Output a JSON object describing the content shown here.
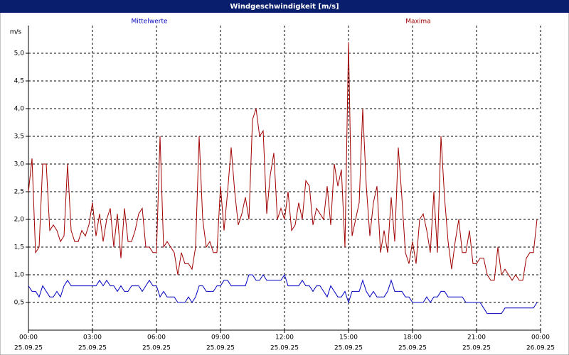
{
  "chart_data": {
    "type": "line",
    "title": "Windgeschwindigkeit [m/s]",
    "ylabel": "m/s",
    "xlim": [
      0,
      1440
    ],
    "ylim": [
      0,
      5.5
    ],
    "grid": true,
    "xticks": [
      {
        "value": 0,
        "label": "00:00"
      },
      {
        "value": 180,
        "label": "03:00"
      },
      {
        "value": 360,
        "label": "06:00"
      },
      {
        "value": 540,
        "label": "09:00"
      },
      {
        "value": 720,
        "label": "12:00"
      },
      {
        "value": 900,
        "label": "15:00"
      },
      {
        "value": 1080,
        "label": "18:00"
      },
      {
        "value": 1260,
        "label": "21:00"
      },
      {
        "value": 1440,
        "label": "00:00"
      }
    ],
    "xtick_dates": [
      "25.09.25",
      "25.09.25",
      "25.09.25",
      "25.09.25",
      "25.09.25",
      "25.09.25",
      "25.09.25",
      "25.09.25",
      "26.09.25"
    ],
    "yticks": [
      {
        "value": 0.5,
        "label": "0,5"
      },
      {
        "value": 1.0,
        "label": "1,0"
      },
      {
        "value": 1.5,
        "label": "1,5"
      },
      {
        "value": 2.0,
        "label": "2,0"
      },
      {
        "value": 2.5,
        "label": "2,5"
      },
      {
        "value": 3.0,
        "label": "3,0"
      },
      {
        "value": 3.5,
        "label": "3,5"
      },
      {
        "value": 4.0,
        "label": "4,0"
      },
      {
        "value": 4.5,
        "label": "4,5"
      },
      {
        "value": 5.0,
        "label": "5,0"
      }
    ],
    "x": [
      0,
      10,
      20,
      30,
      40,
      50,
      60,
      70,
      80,
      90,
      100,
      110,
      120,
      130,
      140,
      150,
      160,
      170,
      180,
      190,
      200,
      210,
      220,
      230,
      240,
      250,
      260,
      270,
      280,
      290,
      300,
      310,
      320,
      330,
      340,
      350,
      360,
      370,
      380,
      390,
      400,
      410,
      420,
      430,
      440,
      450,
      460,
      470,
      480,
      490,
      500,
      510,
      520,
      530,
      540,
      550,
      560,
      570,
      580,
      590,
      600,
      610,
      620,
      630,
      640,
      650,
      660,
      670,
      680,
      690,
      700,
      710,
      720,
      730,
      740,
      750,
      760,
      770,
      780,
      790,
      800,
      810,
      820,
      830,
      840,
      850,
      860,
      870,
      880,
      890,
      900,
      910,
      920,
      930,
      940,
      950,
      960,
      970,
      980,
      990,
      1000,
      1010,
      1020,
      1030,
      1040,
      1050,
      1060,
      1070,
      1080,
      1090,
      1100,
      1110,
      1120,
      1130,
      1140,
      1150,
      1160,
      1170,
      1180,
      1190,
      1200,
      1210,
      1220,
      1230,
      1240,
      1250,
      1260,
      1270,
      1280,
      1290,
      1300,
      1310,
      1320,
      1330,
      1340,
      1350,
      1360,
      1370,
      1380,
      1390,
      1400,
      1410,
      1420,
      1430
    ],
    "series": [
      {
        "name": "Mittelwerte",
        "color": "#0000c0",
        "values": [
          0.8,
          0.7,
          0.7,
          0.6,
          0.8,
          0.7,
          0.6,
          0.6,
          0.7,
          0.6,
          0.8,
          0.9,
          0.8,
          0.8,
          0.8,
          0.8,
          0.8,
          0.8,
          0.8,
          0.8,
          0.9,
          0.8,
          0.9,
          0.8,
          0.8,
          0.7,
          0.8,
          0.7,
          0.7,
          0.8,
          0.8,
          0.8,
          0.7,
          0.8,
          0.9,
          0.8,
          0.8,
          0.6,
          0.7,
          0.6,
          0.6,
          0.6,
          0.5,
          0.5,
          0.5,
          0.6,
          0.5,
          0.6,
          0.8,
          0.8,
          0.7,
          0.7,
          0.7,
          0.8,
          0.8,
          0.9,
          0.9,
          0.8,
          0.8,
          0.8,
          0.8,
          0.8,
          1.0,
          1.0,
          0.9,
          0.9,
          1.0,
          0.9,
          0.9,
          0.9,
          0.9,
          0.9,
          1.0,
          0.8,
          0.8,
          0.8,
          0.8,
          0.9,
          0.8,
          0.8,
          0.7,
          0.8,
          0.8,
          0.7,
          0.6,
          0.8,
          0.7,
          0.6,
          0.6,
          0.7,
          0.5,
          0.7,
          0.7,
          0.7,
          0.9,
          0.7,
          0.6,
          0.7,
          0.6,
          0.6,
          0.6,
          0.7,
          0.9,
          0.7,
          0.7,
          0.7,
          0.6,
          0.6,
          0.5,
          0.5,
          0.5,
          0.5,
          0.6,
          0.5,
          0.6,
          0.6,
          0.7,
          0.7,
          0.6,
          0.6,
          0.6,
          0.6,
          0.6,
          0.5,
          0.5,
          0.5,
          0.5,
          0.5,
          0.4,
          0.3,
          0.3,
          0.3,
          0.3,
          0.3,
          0.4,
          0.4,
          0.4,
          0.4,
          0.4,
          0.4,
          0.4,
          0.4,
          0.4,
          0.5
        ]
      },
      {
        "name": "Maxima",
        "color": "#a00000",
        "values": [
          2.5,
          3.1,
          1.4,
          1.5,
          3.0,
          3.0,
          1.8,
          1.9,
          1.8,
          1.6,
          1.7,
          3.0,
          1.8,
          1.6,
          1.6,
          1.8,
          1.7,
          1.9,
          2.3,
          1.7,
          2.1,
          1.6,
          2.0,
          2.2,
          1.5,
          2.1,
          1.3,
          2.2,
          1.6,
          1.6,
          1.8,
          2.1,
          2.2,
          1.5,
          1.5,
          1.4,
          1.4,
          3.5,
          1.5,
          1.6,
          1.5,
          1.4,
          1.0,
          1.4,
          1.2,
          1.2,
          1.1,
          1.5,
          3.5,
          2.0,
          1.5,
          1.6,
          1.4,
          1.4,
          2.6,
          1.8,
          2.5,
          3.3,
          2.5,
          1.9,
          2.1,
          2.4,
          2.0,
          3.8,
          4.0,
          3.5,
          3.6,
          2.1,
          2.8,
          3.2,
          2.0,
          2.2,
          2.0,
          2.5,
          1.8,
          1.9,
          2.3,
          2.0,
          2.7,
          2.6,
          1.9,
          2.2,
          2.1,
          2.0,
          2.6,
          1.9,
          3.0,
          2.6,
          2.9,
          1.5,
          5.2,
          1.7,
          2.0,
          2.3,
          4.0,
          2.6,
          1.7,
          2.3,
          2.6,
          1.4,
          1.8,
          1.4,
          2.4,
          1.6,
          3.3,
          2.4,
          1.4,
          1.2,
          1.6,
          1.2,
          2.0,
          2.1,
          1.8,
          1.4,
          2.5,
          1.4,
          3.5,
          2.4,
          1.6,
          1.1,
          1.6,
          2.0,
          1.4,
          1.4,
          1.8,
          1.2,
          1.2,
          1.3,
          1.3,
          1.0,
          0.9,
          0.9,
          1.5,
          1.0,
          1.1,
          1.0,
          0.9,
          1.0,
          0.9,
          0.9,
          1.3,
          1.4,
          1.4,
          2.0
        ]
      }
    ]
  }
}
